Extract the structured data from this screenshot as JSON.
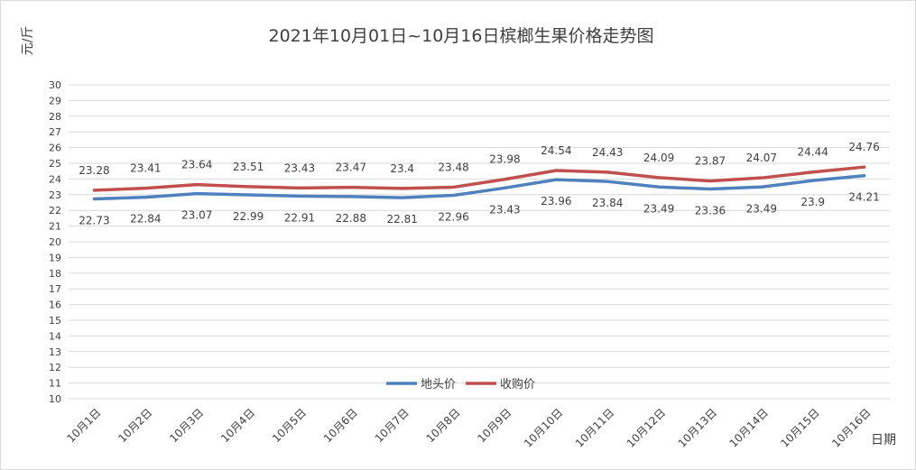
{
  "chart_data": {
    "type": "line",
    "title": "2021年10月01日~10月16日槟榔生果价格走势图",
    "ylabel": "元/斤",
    "xlabel": "日期",
    "ylim": [
      10,
      30
    ],
    "ytick_step": 1,
    "grid": true,
    "legend_position": "bottom-center",
    "categories": [
      "10月1日",
      "10月2日",
      "10月3日",
      "10月4日",
      "10月5日",
      "10月6日",
      "10月7日",
      "10月8日",
      "10月9日",
      "10月10日",
      "10月11日",
      "10月12日",
      "10月13日",
      "10月14日",
      "10月15日",
      "10月16日"
    ],
    "series": [
      {
        "name": "地头价",
        "color": "#4f81bd",
        "label_position": "below",
        "values": [
          22.73,
          22.84,
          23.07,
          22.99,
          22.91,
          22.88,
          22.81,
          22.96,
          23.43,
          23.96,
          23.84,
          23.49,
          23.36,
          23.49,
          23.9,
          24.21
        ],
        "labels": [
          "22.73",
          "22.84",
          "23.07",
          "22.99",
          "22.91",
          "22.88",
          "22.81",
          "22.96",
          "23.43",
          "23.96",
          "23.84",
          "23.49",
          "23.36",
          "23.49",
          "23.9",
          "24.21"
        ]
      },
      {
        "name": "收购价",
        "color": "#c0504d",
        "label_position": "above",
        "values": [
          23.28,
          23.41,
          23.64,
          23.51,
          23.43,
          23.47,
          23.4,
          23.48,
          23.98,
          24.54,
          24.43,
          24.09,
          23.87,
          24.07,
          24.44,
          24.76
        ],
        "labels": [
          "23.28",
          "23.41",
          "23.64",
          "23.51",
          "23.43",
          "23.47",
          "23.4",
          "23.48",
          "23.98",
          "24.54",
          "24.43",
          "24.09",
          "23.87",
          "24.07",
          "24.44",
          "24.76"
        ]
      }
    ]
  }
}
